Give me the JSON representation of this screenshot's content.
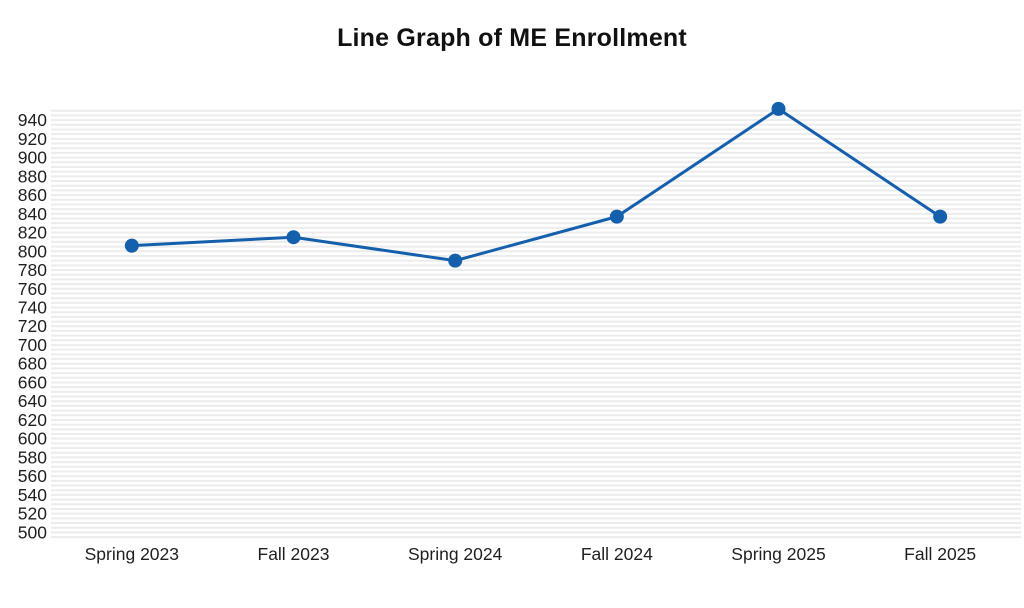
{
  "title": "Line Graph of ME Enrollment",
  "colors": {
    "background": "#ffffff",
    "line": "#1560ac",
    "marker": "#1560ac",
    "gridline": "#ececec",
    "axis_text": "#1f1f1f",
    "title_text": "#111111"
  },
  "chart_data": {
    "type": "line",
    "title": "Line Graph of ME Enrollment",
    "categories": [
      "Spring 2023",
      "Fall 2023",
      "Spring 2024",
      "Fall 2024",
      "Spring 2025",
      "Fall 2025"
    ],
    "values": [
      806,
      815,
      790,
      837,
      952,
      837
    ],
    "xlabel": "",
    "ylabel": "",
    "y_axis": {
      "min": 500,
      "max": 940,
      "tick_step": 20,
      "minor_gridline_step": 5,
      "render_min": 494,
      "render_max": 954
    },
    "grid": "horizontal-minor",
    "legend": "none",
    "marker_style": "filled-circle"
  }
}
